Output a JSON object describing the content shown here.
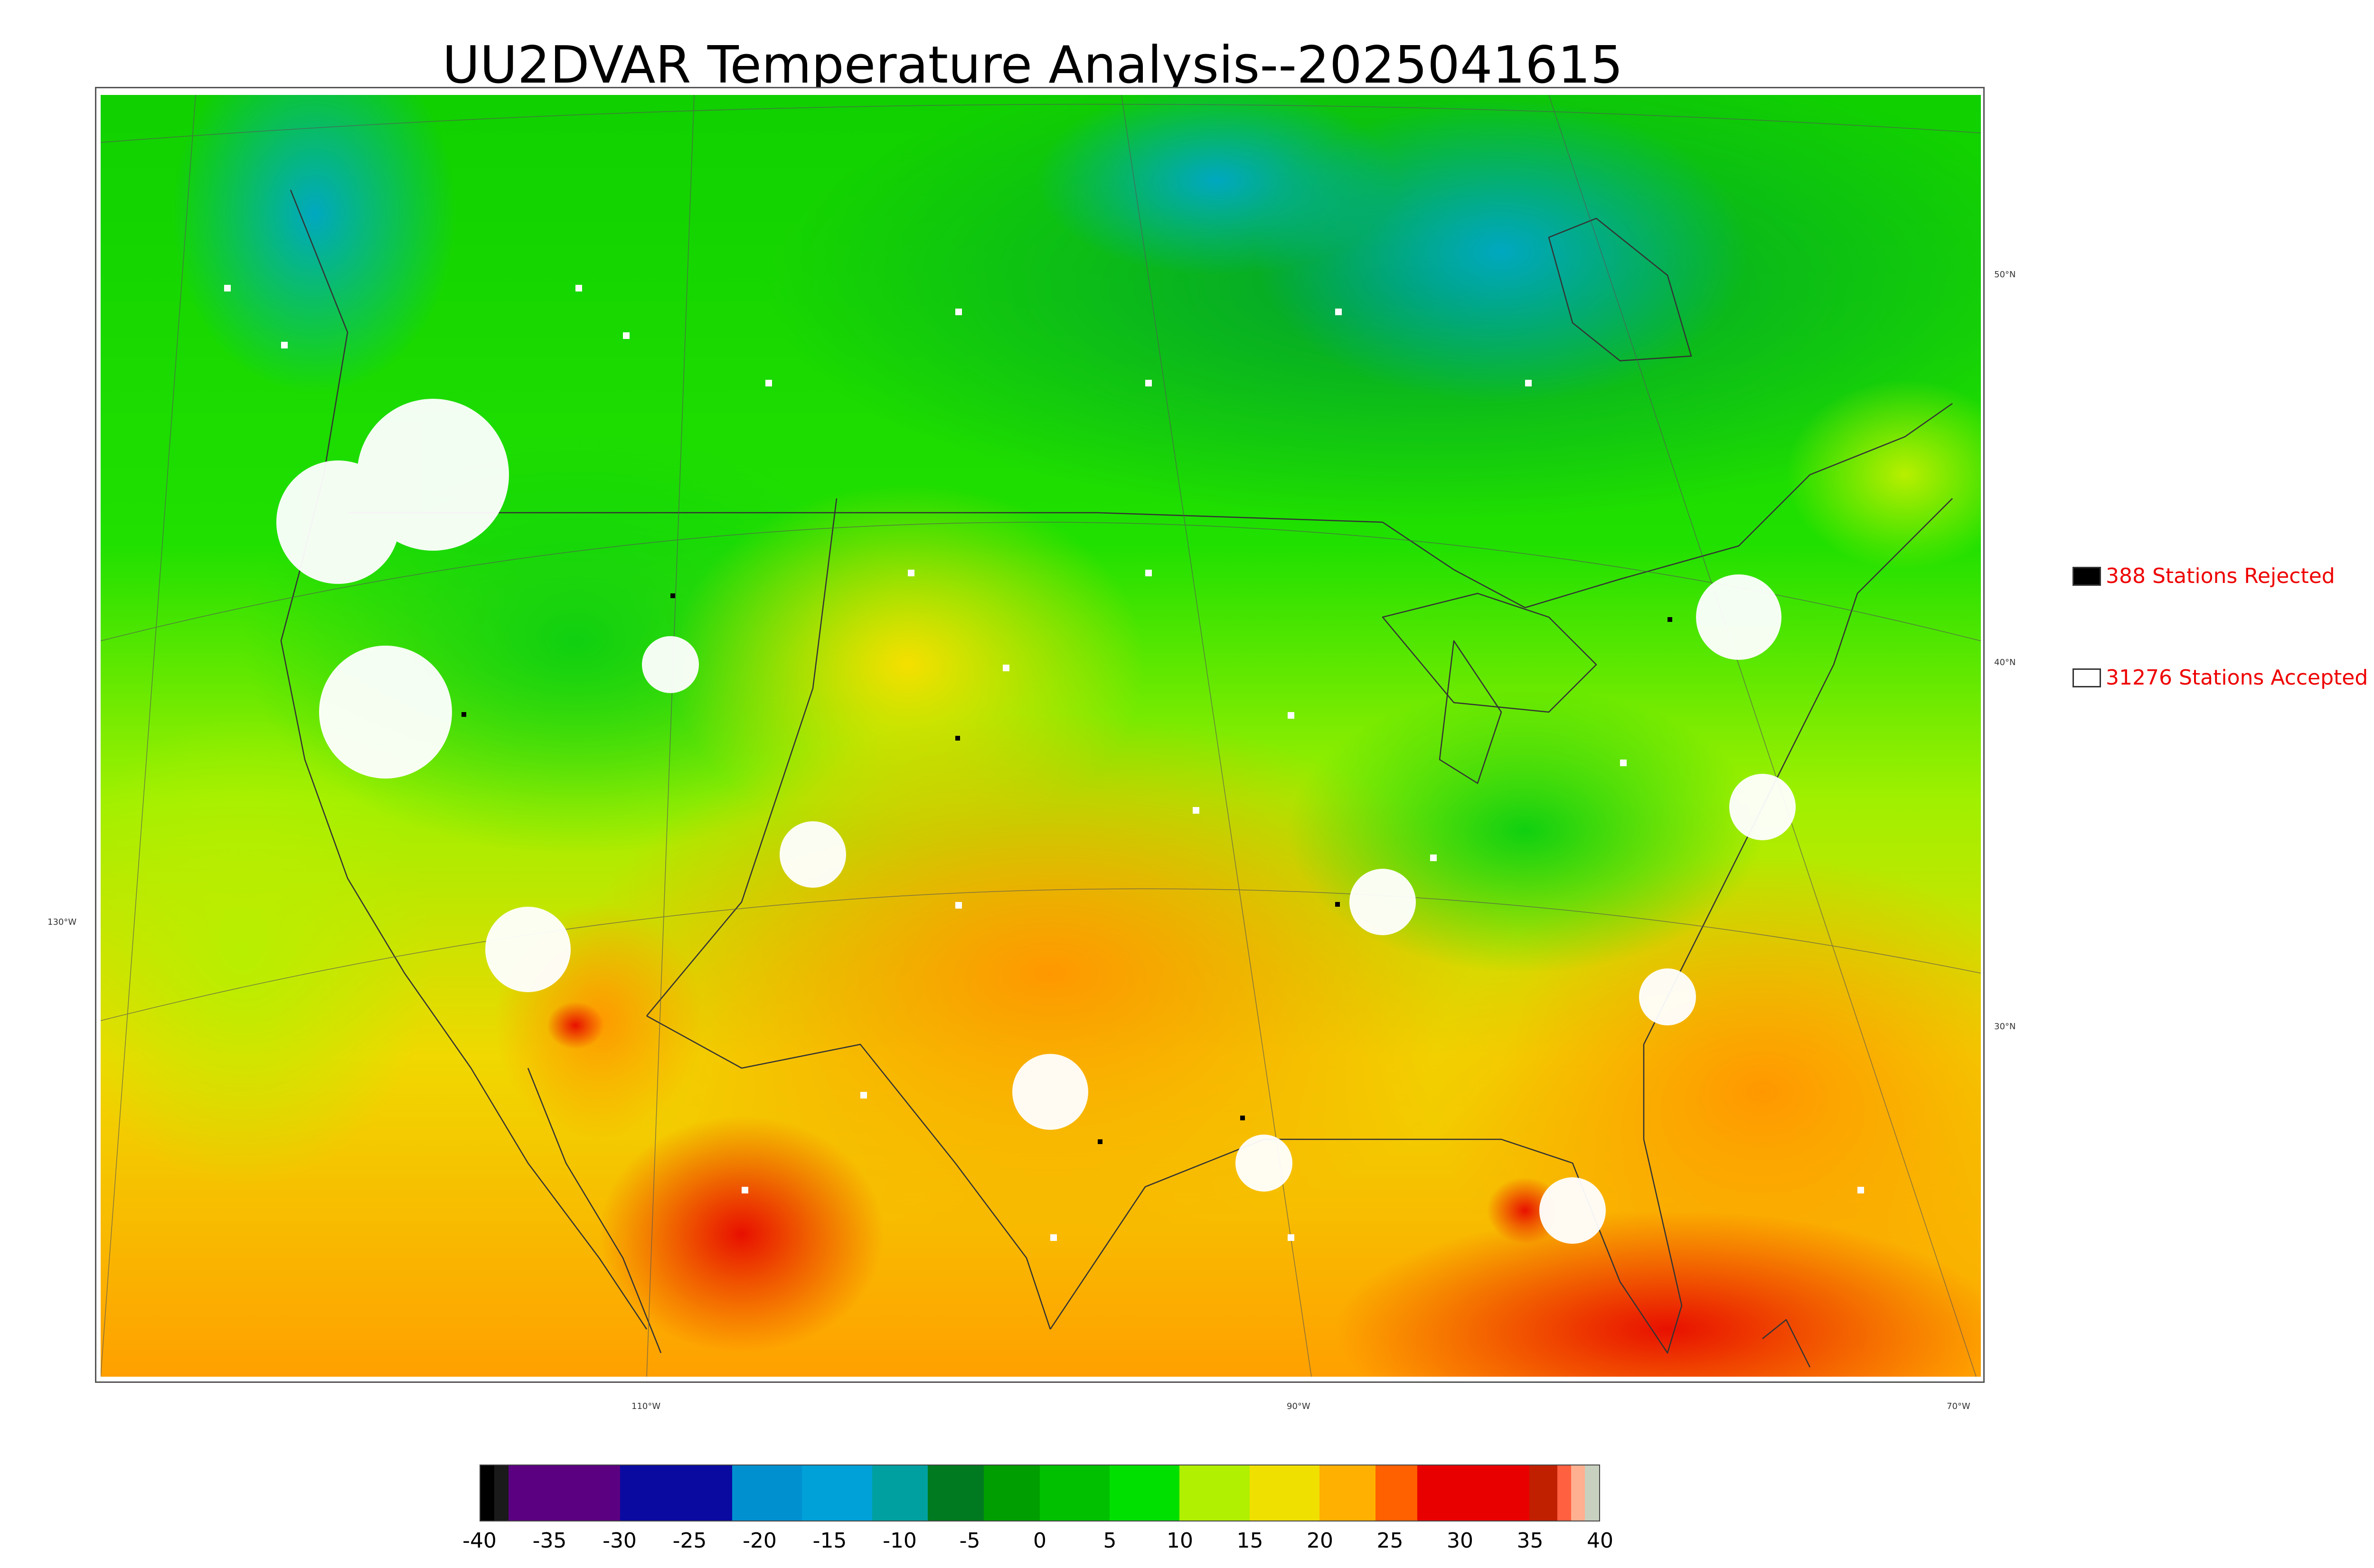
{
  "title": "UU2DVAR Temperature Analysis--2025041615",
  "map": {
    "lat_labels": [
      {
        "text": "50°N"
      },
      {
        "text": "40°N"
      },
      {
        "text": "30°N"
      }
    ],
    "west_label": "130°W",
    "lon_labels": [
      {
        "text": "110°W"
      },
      {
        "text": "90°W"
      },
      {
        "text": "70°W"
      }
    ]
  },
  "legend": {
    "rejected_label": "388 Stations Rejected",
    "accepted_label": "31276 Stations Accepted",
    "rejected_color": "#000000",
    "accepted_color": "#ffffff",
    "label_color": "#ee0000"
  },
  "colorbar": {
    "ticks": [
      "-40",
      "-35",
      "-30",
      "-25",
      "-20",
      "-15",
      "-10",
      "-5",
      "0",
      "5",
      "10",
      "15",
      "20",
      "25",
      "30",
      "35",
      "40"
    ],
    "min": -40,
    "max": 40,
    "segments": [
      {
        "from": -40,
        "to": -39,
        "color": "#000000"
      },
      {
        "from": -39,
        "to": -38,
        "color": "#1a1a1a"
      },
      {
        "from": -38,
        "to": -30,
        "color": "#5a0080"
      },
      {
        "from": -30,
        "to": -22,
        "color": "#0a0aa0"
      },
      {
        "from": -22,
        "to": -17,
        "color": "#0090d0"
      },
      {
        "from": -17,
        "to": -12,
        "color": "#00a0d8"
      },
      {
        "from": -12,
        "to": -8,
        "color": "#00a0a0"
      },
      {
        "from": -8,
        "to": -4,
        "color": "#007a20"
      },
      {
        "from": -4,
        "to": 0,
        "color": "#009e00"
      },
      {
        "from": 0,
        "to": 5,
        "color": "#00c000"
      },
      {
        "from": 5,
        "to": 10,
        "color": "#00e000"
      },
      {
        "from": 10,
        "to": 15,
        "color": "#b0f000"
      },
      {
        "from": 15,
        "to": 20,
        "color": "#f0e000"
      },
      {
        "from": 20,
        "to": 24,
        "color": "#ffb000"
      },
      {
        "from": 24,
        "to": 27,
        "color": "#ff6000"
      },
      {
        "from": 27,
        "to": 35,
        "color": "#e80000"
      },
      {
        "from": 35,
        "to": 37,
        "color": "#c02000"
      },
      {
        "from": 37,
        "to": 38,
        "color": "#ff6040"
      },
      {
        "from": 38,
        "to": 39,
        "color": "#ffb090"
      },
      {
        "from": 39,
        "to": 40,
        "color": "#c8d0c0"
      }
    ]
  }
}
